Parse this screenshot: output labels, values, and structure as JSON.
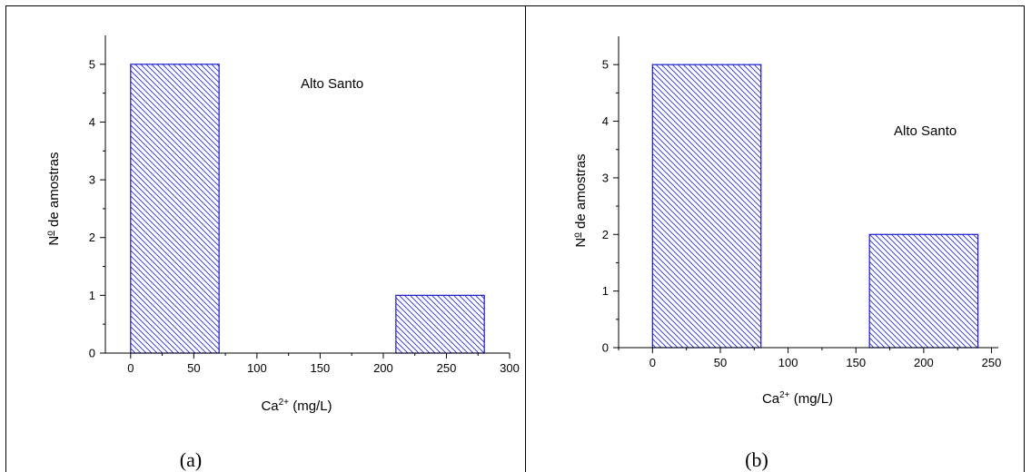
{
  "colors": {
    "bar_stroke": "#1a1acc",
    "hatch": "#2a2ac8",
    "axis": "#000000"
  },
  "chart_data": [
    {
      "type": "bar",
      "caption": "(a)",
      "annotation": "Alto Santo",
      "xlabel": {
        "base": "Ca",
        "sup": "2+",
        "rest": " (mg/L)"
      },
      "ylabel": {
        "n": "N",
        "sup": "o",
        "rest": " de amostras"
      },
      "xlim": [
        -20,
        300
      ],
      "ylim": [
        0,
        5.5
      ],
      "xticks": [
        0,
        50,
        100,
        150,
        200,
        250,
        300
      ],
      "xticks_minor": [
        -25,
        25,
        75,
        125,
        175,
        225,
        275
      ],
      "yticks": [
        0,
        1,
        2,
        3,
        4,
        5
      ],
      "bars": [
        {
          "x0": 0,
          "x1": 70,
          "value": 5
        },
        {
          "x0": 210,
          "x1": 280,
          "value": 1
        }
      ]
    },
    {
      "type": "bar",
      "caption": "(b)",
      "annotation": "Alto Santo",
      "xlabel": {
        "base": "Ca",
        "sup": "2+",
        "rest": " (mg/L)"
      },
      "ylabel": {
        "n": "N",
        "sup": "o",
        "rest": " de amostras"
      },
      "xlim": [
        -25,
        255
      ],
      "ylim": [
        0,
        5.5
      ],
      "xticks": [
        0,
        50,
        100,
        150,
        200,
        250
      ],
      "xticks_minor": [
        -25,
        25,
        75,
        125,
        175,
        225
      ],
      "yticks": [
        0,
        1,
        2,
        3,
        4,
        5
      ],
      "bars": [
        {
          "x0": 0,
          "x1": 80,
          "value": 5
        },
        {
          "x0": 160,
          "x1": 240,
          "value": 2
        }
      ]
    }
  ]
}
